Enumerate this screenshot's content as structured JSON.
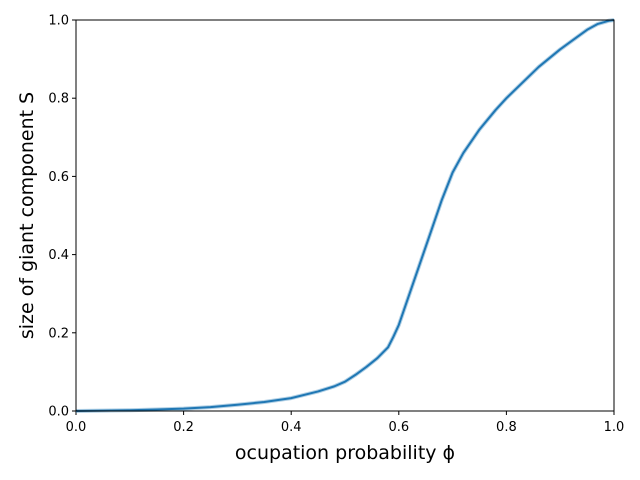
{
  "chart_data": {
    "type": "line",
    "title": "",
    "xlabel": "ocupation probability ϕ",
    "ylabel": "size of giant component S",
    "xlim": [
      0.0,
      1.0
    ],
    "ylim": [
      0.0,
      1.0
    ],
    "xticks": [
      "0.0",
      "0.2",
      "0.4",
      "0.6",
      "0.8",
      "1.0"
    ],
    "yticks": [
      "0.0",
      "0.2",
      "0.4",
      "0.6",
      "0.8",
      "1.0"
    ],
    "grid": false,
    "legend": "none",
    "series": [
      {
        "color": "#1f77b4",
        "x": [
          0.0,
          0.05,
          0.1,
          0.15,
          0.2,
          0.25,
          0.3,
          0.35,
          0.4,
          0.45,
          0.48,
          0.5,
          0.52,
          0.54,
          0.56,
          0.58,
          0.59,
          0.6,
          0.62,
          0.64,
          0.66,
          0.68,
          0.7,
          0.72,
          0.75,
          0.78,
          0.8,
          0.83,
          0.86,
          0.9,
          0.93,
          0.95,
          0.97,
          0.99,
          1.0
        ],
        "y": [
          0.0,
          0.001,
          0.002,
          0.004,
          0.006,
          0.01,
          0.016,
          0.023,
          0.033,
          0.05,
          0.063,
          0.075,
          0.093,
          0.113,
          0.135,
          0.163,
          0.19,
          0.22,
          0.3,
          0.38,
          0.46,
          0.54,
          0.61,
          0.66,
          0.72,
          0.77,
          0.8,
          0.84,
          0.88,
          0.925,
          0.955,
          0.975,
          0.99,
          0.998,
          1.0
        ]
      }
    ]
  }
}
